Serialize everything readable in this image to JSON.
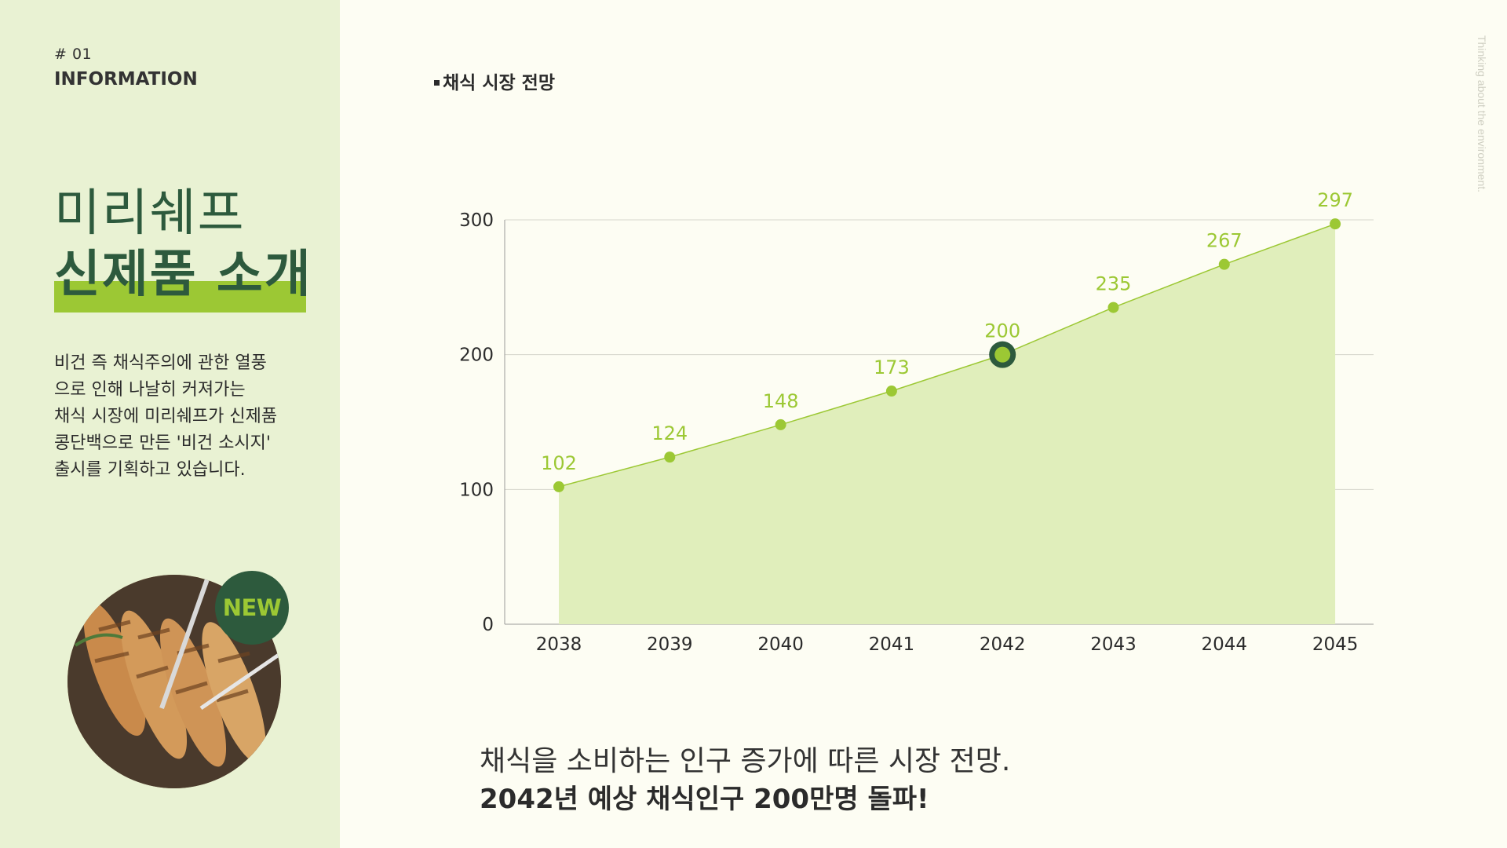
{
  "section": {
    "number": "# 01",
    "label": "INFORMATION"
  },
  "title": {
    "line1": "미리쉐프",
    "line2": "신제품 소개"
  },
  "description": [
    "비건 즉 채식주의에 관한 열풍",
    "으로 인해 나날히 커져가는",
    "채식 시장에 미리쉐프가 신제품",
    "콩단백으로 만든 '비건 소시지'",
    "출시를 기획하고 있습니다."
  ],
  "badge": "NEW",
  "side_text": "Thinking about the environment.",
  "chart_heading": "채식 시장 전망",
  "caption": {
    "line1": "채식을 소비하는 인구 증가에 따른 시장 전망.",
    "line2": "2042년 예상 채식인구 200만명 돌파!"
  },
  "colors": {
    "accent": "#9cc834",
    "area_fill": "#e0eebb",
    "dark_green": "#2d5a3d",
    "panel_bg": "#e9f2d3",
    "page_bg": "#fdfdf3"
  },
  "icons": {
    "photo": "vegan-sausage-photo"
  },
  "chart_data": {
    "type": "area",
    "categories": [
      "2038",
      "2039",
      "2040",
      "2041",
      "2042",
      "2043",
      "2044",
      "2045"
    ],
    "values": [
      102,
      124,
      148,
      173,
      200,
      235,
      267,
      297
    ],
    "value_labels": [
      "102",
      "124",
      "148",
      "173",
      "200",
      "235",
      "267",
      "297"
    ],
    "y_ticks": [
      "0",
      "100",
      "200",
      "300"
    ],
    "ylim": [
      0,
      300
    ],
    "highlight_category": "2042",
    "grid": true,
    "title": "",
    "xlabel": "",
    "ylabel": ""
  }
}
